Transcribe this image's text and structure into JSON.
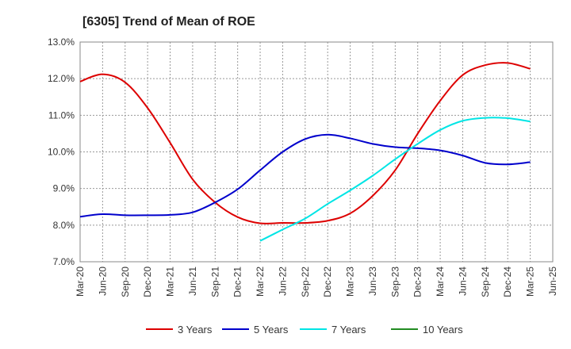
{
  "chart_data": {
    "type": "line",
    "title": "[6305]  Trend of Mean of ROE",
    "xlabel": "",
    "ylabel": "",
    "x_ticks": [
      "Mar-20",
      "Jun-20",
      "Sep-20",
      "Dec-20",
      "Mar-21",
      "Jun-21",
      "Sep-21",
      "Dec-21",
      "Mar-22",
      "Jun-22",
      "Sep-22",
      "Dec-22",
      "Mar-23",
      "Jun-23",
      "Sep-23",
      "Dec-23",
      "Mar-24",
      "Jun-24",
      "Sep-24",
      "Dec-24",
      "Mar-25",
      "Jun-25"
    ],
    "y_ticks": [
      "7.0%",
      "8.0%",
      "9.0%",
      "10.0%",
      "11.0%",
      "12.0%",
      "13.0%"
    ],
    "ylim": [
      7.0,
      13.0
    ],
    "grid": "dotted",
    "legend_position": "bottom",
    "series": [
      {
        "name": "3 Years",
        "color": "#dd0000",
        "x": [
          "Mar-20",
          "Jun-20",
          "Sep-20",
          "Dec-20",
          "Mar-21",
          "Jun-21",
          "Sep-21",
          "Dec-21",
          "Mar-22",
          "Jun-22",
          "Sep-22",
          "Dec-22",
          "Mar-23",
          "Jun-23",
          "Sep-23",
          "Dec-23",
          "Mar-24",
          "Jun-24",
          "Sep-24",
          "Dec-24",
          "Mar-25"
        ],
        "values": [
          11.92,
          12.12,
          11.9,
          11.2,
          10.25,
          9.25,
          8.62,
          8.22,
          8.05,
          8.06,
          8.06,
          8.12,
          8.32,
          8.8,
          9.5,
          10.5,
          11.4,
          12.1,
          12.37,
          12.43,
          12.27
        ]
      },
      {
        "name": "5 Years",
        "color": "#0000cc",
        "x": [
          "Mar-20",
          "Jun-20",
          "Sep-20",
          "Dec-20",
          "Mar-21",
          "Jun-21",
          "Sep-21",
          "Dec-21",
          "Mar-22",
          "Jun-22",
          "Sep-22",
          "Dec-22",
          "Mar-23",
          "Jun-23",
          "Sep-23",
          "Dec-23",
          "Mar-24",
          "Jun-24",
          "Sep-24",
          "Dec-24",
          "Mar-25"
        ],
        "values": [
          8.23,
          8.3,
          8.27,
          8.27,
          8.28,
          8.35,
          8.62,
          8.98,
          9.5,
          10.0,
          10.35,
          10.47,
          10.37,
          10.22,
          10.13,
          10.1,
          10.04,
          9.9,
          9.7,
          9.66,
          9.72
        ]
      },
      {
        "name": "7 Years",
        "color": "#00e5e5",
        "x": [
          "Mar-22",
          "Jun-22",
          "Sep-22",
          "Dec-22",
          "Mar-23",
          "Jun-23",
          "Sep-23",
          "Dec-23",
          "Mar-24",
          "Jun-24",
          "Sep-24",
          "Dec-24",
          "Mar-25"
        ],
        "values": [
          7.57,
          7.88,
          8.18,
          8.58,
          8.95,
          9.35,
          9.8,
          10.22,
          10.6,
          10.85,
          10.93,
          10.92,
          10.83
        ]
      },
      {
        "name": "10 Years",
        "color": "#228b22",
        "x": [],
        "values": []
      }
    ]
  }
}
